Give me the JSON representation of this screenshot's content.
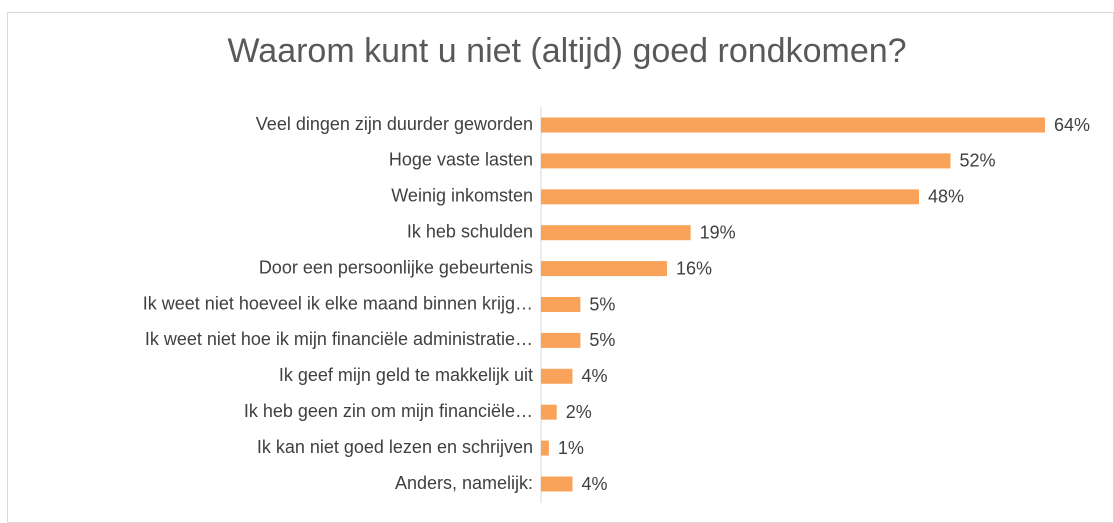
{
  "chart_data": {
    "type": "bar",
    "orientation": "horizontal",
    "title": "Waarom kunt u niet (altijd) goed rondkomen?",
    "categories": [
      "Veel dingen zijn duurder geworden",
      "Hoge vaste lasten",
      "Weinig inkomsten",
      "Ik heb schulden",
      "Door een persoonlijke gebeurtenis",
      "Ik weet niet hoeveel ik elke maand binnen krijg…",
      "Ik weet niet hoe ik mijn financiële administratie…",
      "Ik geef mijn geld te makkelijk uit",
      "Ik heb geen zin om mijn financiële…",
      "Ik kan niet goed lezen en schrijven",
      "Anders, namelijk:"
    ],
    "values": [
      64,
      52,
      48,
      19,
      16,
      5,
      5,
      4,
      2,
      1,
      4
    ],
    "value_labels": [
      "64%",
      "52%",
      "48%",
      "19%",
      "16%",
      "5%",
      "5%",
      "4%",
      "2%",
      "1%",
      "4%"
    ],
    "color": "#f9a35a"
  }
}
